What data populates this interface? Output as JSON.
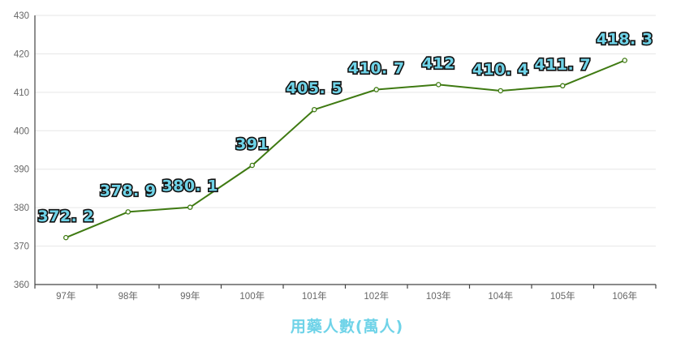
{
  "chart_data": {
    "type": "line",
    "title": "",
    "xlabel": "用藥人數(萬人)",
    "ylabel": "",
    "categories": [
      "97年",
      "98年",
      "99年",
      "100年",
      "101年",
      "102年",
      "103年",
      "104年",
      "105年",
      "106年"
    ],
    "series": [
      {
        "values": [
          372.2,
          378.9,
          380.1,
          391,
          405.5,
          410.7,
          412,
          410.4,
          411.7,
          418.3
        ]
      }
    ],
    "data_labels": [
      "372. 2",
      "378. 9",
      "380. 1",
      "391",
      "405. 5",
      "410. 7",
      "412",
      "410. 4",
      "411. 7",
      "418. 3"
    ],
    "ylim": [
      360,
      430
    ],
    "yticks": [
      360,
      370,
      380,
      390,
      400,
      410,
      420,
      430
    ],
    "grid": "horizontal",
    "legend": "none",
    "colors": {
      "line": "#3f7a12",
      "label_fill": "#6fd3e8",
      "label_stroke": "#111111",
      "xlabel": "#6fd3e8"
    }
  }
}
